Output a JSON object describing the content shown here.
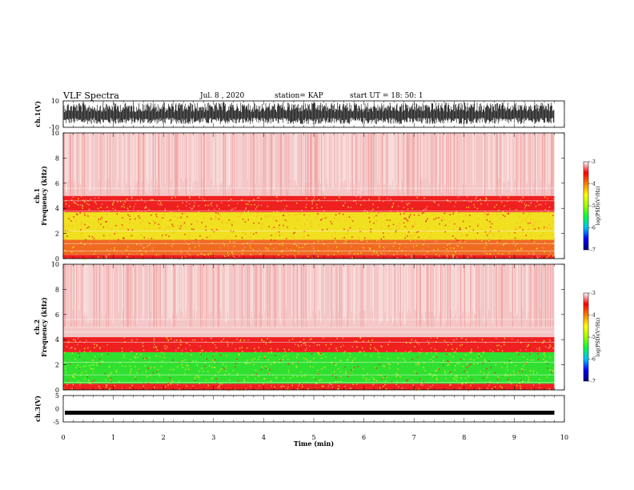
{
  "header": {
    "title": "VLF Spectra",
    "date": "Jul. 8 , 2020",
    "station": "station= KAP",
    "start_ut": "start UT = 18: 50: 1"
  },
  "chart_data": [
    {
      "type": "line",
      "panel": "ch1-waveform",
      "ylabel": "ch.1(V)",
      "ylim": [
        -10,
        10
      ],
      "yticks": [
        "10",
        "-10"
      ],
      "xlim": [
        0,
        10
      ],
      "data_extent_min": 9.8,
      "color": "#000000"
    },
    {
      "type": "heatmap",
      "panel": "ch1-spectrogram",
      "ylabel": "ch.1\nFrequency (kHz)",
      "ylabel_lines": [
        "ch.1",
        "Frequency (kHz)"
      ],
      "ylim": [
        0,
        10
      ],
      "yticks": [
        "0",
        "2",
        "4",
        "6",
        "8",
        "10"
      ],
      "xlim": [
        0,
        10
      ],
      "data_extent_min": 9.8,
      "bands": [
        {
          "from": 0,
          "to": 0.3,
          "level": "red"
        },
        {
          "from": 0.3,
          "to": 1.5,
          "level": "red-yellow"
        },
        {
          "from": 1.5,
          "to": 3.7,
          "level": "yellow"
        },
        {
          "from": 3.7,
          "to": 5.0,
          "level": "red"
        },
        {
          "from": 5.0,
          "to": 10,
          "level": "pink"
        }
      ],
      "colorbar": {
        "label": "log(PSD)(V²/Hz)",
        "ticks": [
          "-3",
          "-4",
          "-5",
          "-6",
          "-7"
        ],
        "range": [
          -7,
          -3
        ]
      }
    },
    {
      "type": "heatmap",
      "panel": "ch2-spectrogram",
      "ylabel": "ch.2\nFrequency (kHz)",
      "ylabel_lines": [
        "ch.2",
        "Frequency (kHz)"
      ],
      "ylim": [
        0,
        10
      ],
      "yticks": [
        "0",
        "2",
        "4",
        "6",
        "8",
        "10"
      ],
      "xlim": [
        0,
        10
      ],
      "data_extent_min": 9.8,
      "bands": [
        {
          "from": 0,
          "to": 0.5,
          "level": "red"
        },
        {
          "from": 0.5,
          "to": 3.0,
          "level": "green"
        },
        {
          "from": 3.0,
          "to": 4.2,
          "level": "red"
        },
        {
          "from": 4.2,
          "to": 10,
          "level": "pink"
        }
      ],
      "colorbar": {
        "label": "log(PSD)(V²/Hz)",
        "ticks": [
          "-3",
          "-4",
          "-5",
          "-6",
          "-7"
        ],
        "range": [
          -7,
          -3
        ]
      }
    },
    {
      "type": "line",
      "panel": "ch3-waveform",
      "ylabel": "ch.3(V)",
      "ylim": [
        -5,
        5
      ],
      "yticks": [
        "5",
        "0",
        "-5"
      ],
      "xlim": [
        0,
        10
      ],
      "data_extent_min": 9.8,
      "approx_level": -1.5,
      "color": "#000000"
    }
  ],
  "x_axis": {
    "label": "Time (min)",
    "ticks": [
      "0",
      "1",
      "2",
      "3",
      "4",
      "5",
      "6",
      "7",
      "8",
      "9",
      "10"
    ]
  },
  "colors": {
    "pink": "#f4c6c6",
    "red": "#ee2020",
    "yellow": "#f0e020",
    "green": "#30e030",
    "colormap": [
      "#000080",
      "#0000ff",
      "#00c0ff",
      "#00ff40",
      "#a0ff00",
      "#ffff00",
      "#ff8000",
      "#ff0000",
      "#ffffff"
    ]
  }
}
